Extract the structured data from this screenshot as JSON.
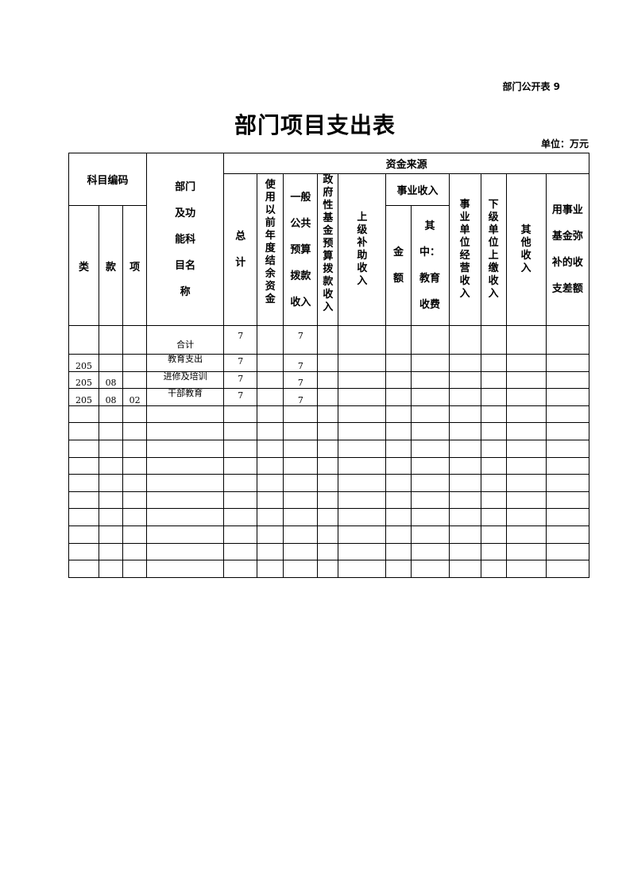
{
  "doc_tag": "部门公开表 9",
  "title": "部门项目支出表",
  "unit": "单位：万元",
  "header": {
    "subject_code": "科目编码",
    "dept_name": "部门\n及功\n能科\n目名\n称",
    "fund_source": "资金来源",
    "total": "总\n计",
    "prior_balance": "使\n用\n以\n前\n年\n度\n结\n余\n资\n金",
    "general_budget": "一般\n公共\n预算\n拨款\n收入",
    "gov_fund": "政\n府\n性\n基\n金\n预\n算\n拨\n款\n收\n入",
    "superior_subsidy": "上\n级\n补\n助\n收\n入",
    "business_income": "事业收入",
    "amount": "金\n额",
    "edu_fee": "其\n中：\n教育\n收费",
    "operating_income": "事\n业\n单\n位\n经\n营\n收\n入",
    "subordinate_income": "下\n级\n单\n位\n上\n缴\n收\n入",
    "other_income": "其\n他\n收\n入",
    "fund_offset": "用事业\n基金弥\n补的收\n支差额",
    "lei": "类",
    "kuan": "款",
    "xiang": "项"
  },
  "summary": {
    "name": "合计",
    "total": "7",
    "general_budget": "7"
  },
  "rows": [
    {
      "lei": "205",
      "kuan": "",
      "xiang": "",
      "name": "教育支出",
      "total": "7",
      "general_budget": "7"
    },
    {
      "lei": "205",
      "kuan": "08",
      "xiang": "",
      "name": "进修及培训",
      "total": "7",
      "general_budget": "7"
    },
    {
      "lei": "205",
      "kuan": "08",
      "xiang": "02",
      "name": "干部教育",
      "total": "7",
      "general_budget": "7"
    }
  ]
}
